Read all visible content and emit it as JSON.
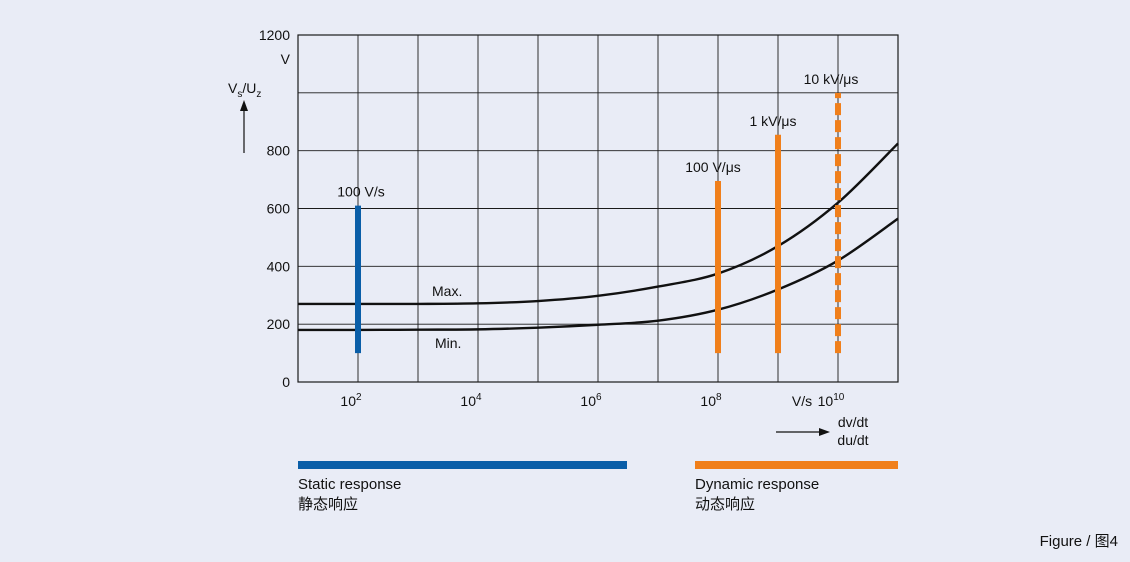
{
  "chart_data": {
    "type": "line",
    "title": "",
    "ylabel": {
      "main": "V",
      "sub1": "s",
      "sep": "/U",
      "sub2": "z"
    },
    "yunit": "V",
    "xunit": "V/s",
    "xlabel_lines": [
      "dv/dt",
      "du/dt"
    ],
    "ylim": [
      0,
      1200
    ],
    "yticks": [
      0,
      200,
      400,
      600,
      800,
      1200
    ],
    "x_scale": "log10",
    "xlim_exp": [
      1,
      11
    ],
    "xticks": [
      {
        "base": "10",
        "exp": "2",
        "e": 2
      },
      {
        "base": "10",
        "exp": "4",
        "e": 4
      },
      {
        "base": "10",
        "exp": "6",
        "e": 6
      },
      {
        "base": "10",
        "exp": "8",
        "e": 8
      },
      {
        "base": "10",
        "exp": "10",
        "e": 10
      }
    ],
    "grid": true,
    "series": [
      {
        "name": "Max.",
        "color": "#111111",
        "x_exp": [
          1,
          2,
          3,
          4,
          5,
          6,
          7,
          8,
          9,
          10,
          11
        ],
        "y": [
          270,
          270,
          270,
          272,
          280,
          298,
          330,
          375,
          470,
          620,
          825
        ]
      },
      {
        "name": "Min.",
        "color": "#111111",
        "x_exp": [
          1,
          2,
          3,
          4,
          5,
          6,
          7,
          8,
          9,
          10,
          11
        ],
        "y": [
          180,
          180,
          181,
          182,
          188,
          198,
          212,
          250,
          320,
          420,
          565
        ]
      }
    ],
    "bars": [
      {
        "label": "100 V/s",
        "x_exp": 2,
        "ymin": 100,
        "ymax": 610,
        "color": "#0a5ea8",
        "dashed": false
      },
      {
        "label": "100 V/μs",
        "x_exp": 8,
        "ymin": 100,
        "ymax": 695,
        "color": "#f07f1b",
        "dashed": false
      },
      {
        "label": "1 kV/μs",
        "x_exp": 9,
        "ymin": 100,
        "ymax": 855,
        "color": "#f07f1b",
        "dashed": false
      },
      {
        "label": "10 kV/μs",
        "x_exp": 10,
        "ymin": 100,
        "ymax": 1000,
        "color": "#f07f1b",
        "dashed": true
      }
    ]
  },
  "legend": {
    "static": {
      "line1": "Static response",
      "line2": "静态响应",
      "color": "#0a5ea8"
    },
    "dynamic": {
      "line1": "Dynamic response",
      "line2": "动态响应",
      "color": "#f07f1b"
    }
  },
  "caption": "Figure / 图4"
}
